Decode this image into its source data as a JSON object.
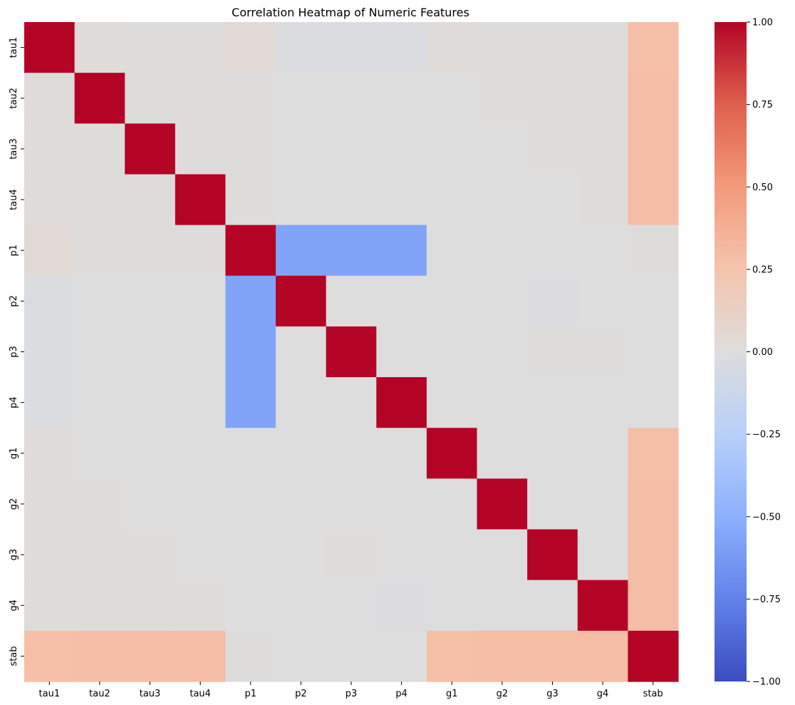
{
  "chart_data": {
    "type": "heatmap",
    "title": "Correlation Heatmap of Numeric Features",
    "xlabel": "",
    "ylabel": "",
    "x_categories": [
      "tau1",
      "tau2",
      "tau3",
      "tau4",
      "p1",
      "p2",
      "p3",
      "p4",
      "g1",
      "g2",
      "g3",
      "g4",
      "stab"
    ],
    "y_categories": [
      "tau1",
      "tau2",
      "tau3",
      "tau4",
      "p1",
      "p2",
      "p3",
      "p4",
      "g1",
      "g2",
      "g3",
      "g4",
      "stab"
    ],
    "colormap": "coolwarm",
    "value_range": [
      -1.0,
      1.0
    ],
    "colorbar_ticks": [
      "1.00",
      "0.75",
      "0.50",
      "0.25",
      "0.00",
      "−0.25",
      "−0.50",
      "−0.75",
      "−1.00"
    ],
    "colorbar_tick_values": [
      1.0,
      0.75,
      0.5,
      0.25,
      0.0,
      -0.25,
      -0.5,
      -0.75,
      -1.0
    ],
    "values": [
      [
        1.0,
        0.02,
        0.01,
        0.01,
        0.04,
        -0.02,
        -0.02,
        -0.02,
        0.02,
        0.01,
        0.01,
        0.01,
        0.28
      ],
      [
        0.02,
        1.0,
        0.01,
        0.01,
        0.01,
        0.0,
        0.0,
        0.0,
        0.0,
        0.01,
        0.01,
        0.01,
        0.29
      ],
      [
        0.01,
        0.01,
        1.0,
        0.01,
        0.01,
        0.0,
        0.0,
        0.0,
        0.0,
        0.0,
        0.01,
        0.01,
        0.29
      ],
      [
        0.01,
        0.01,
        0.01,
        1.0,
        0.01,
        0.0,
        0.0,
        0.0,
        0.0,
        0.0,
        0.0,
        0.01,
        0.29
      ],
      [
        0.04,
        0.01,
        0.01,
        0.01,
        1.0,
        -0.57,
        -0.57,
        -0.57,
        0.0,
        0.0,
        0.0,
        0.0,
        0.01
      ],
      [
        -0.02,
        0.0,
        0.0,
        0.0,
        -0.57,
        1.0,
        0.0,
        0.0,
        0.0,
        0.0,
        -0.01,
        0.0,
        0.0
      ],
      [
        -0.02,
        0.0,
        0.0,
        0.0,
        -0.57,
        0.0,
        1.0,
        0.0,
        0.0,
        0.0,
        0.01,
        0.01,
        0.0
      ],
      [
        -0.02,
        0.0,
        0.0,
        0.0,
        -0.57,
        0.0,
        0.0,
        1.0,
        0.0,
        0.0,
        0.0,
        0.0,
        0.0
      ],
      [
        0.02,
        0.0,
        0.0,
        0.0,
        0.0,
        0.0,
        0.0,
        0.0,
        1.0,
        0.0,
        0.0,
        0.0,
        0.28
      ],
      [
        0.01,
        0.02,
        0.0,
        0.0,
        0.0,
        0.0,
        0.0,
        0.0,
        0.0,
        1.0,
        0.0,
        0.0,
        0.29
      ],
      [
        0.01,
        0.01,
        0.01,
        0.0,
        0.0,
        0.0,
        0.01,
        0.0,
        0.0,
        0.0,
        1.0,
        0.0,
        0.29
      ],
      [
        0.01,
        0.01,
        0.01,
        0.01,
        0.0,
        0.0,
        0.0,
        -0.01,
        0.0,
        0.0,
        0.0,
        1.0,
        0.29
      ],
      [
        0.28,
        0.29,
        0.29,
        0.29,
        0.01,
        0.0,
        0.0,
        0.0,
        0.28,
        0.29,
        0.29,
        0.29,
        1.0
      ]
    ],
    "legend": "colorbar right",
    "grid": false
  }
}
